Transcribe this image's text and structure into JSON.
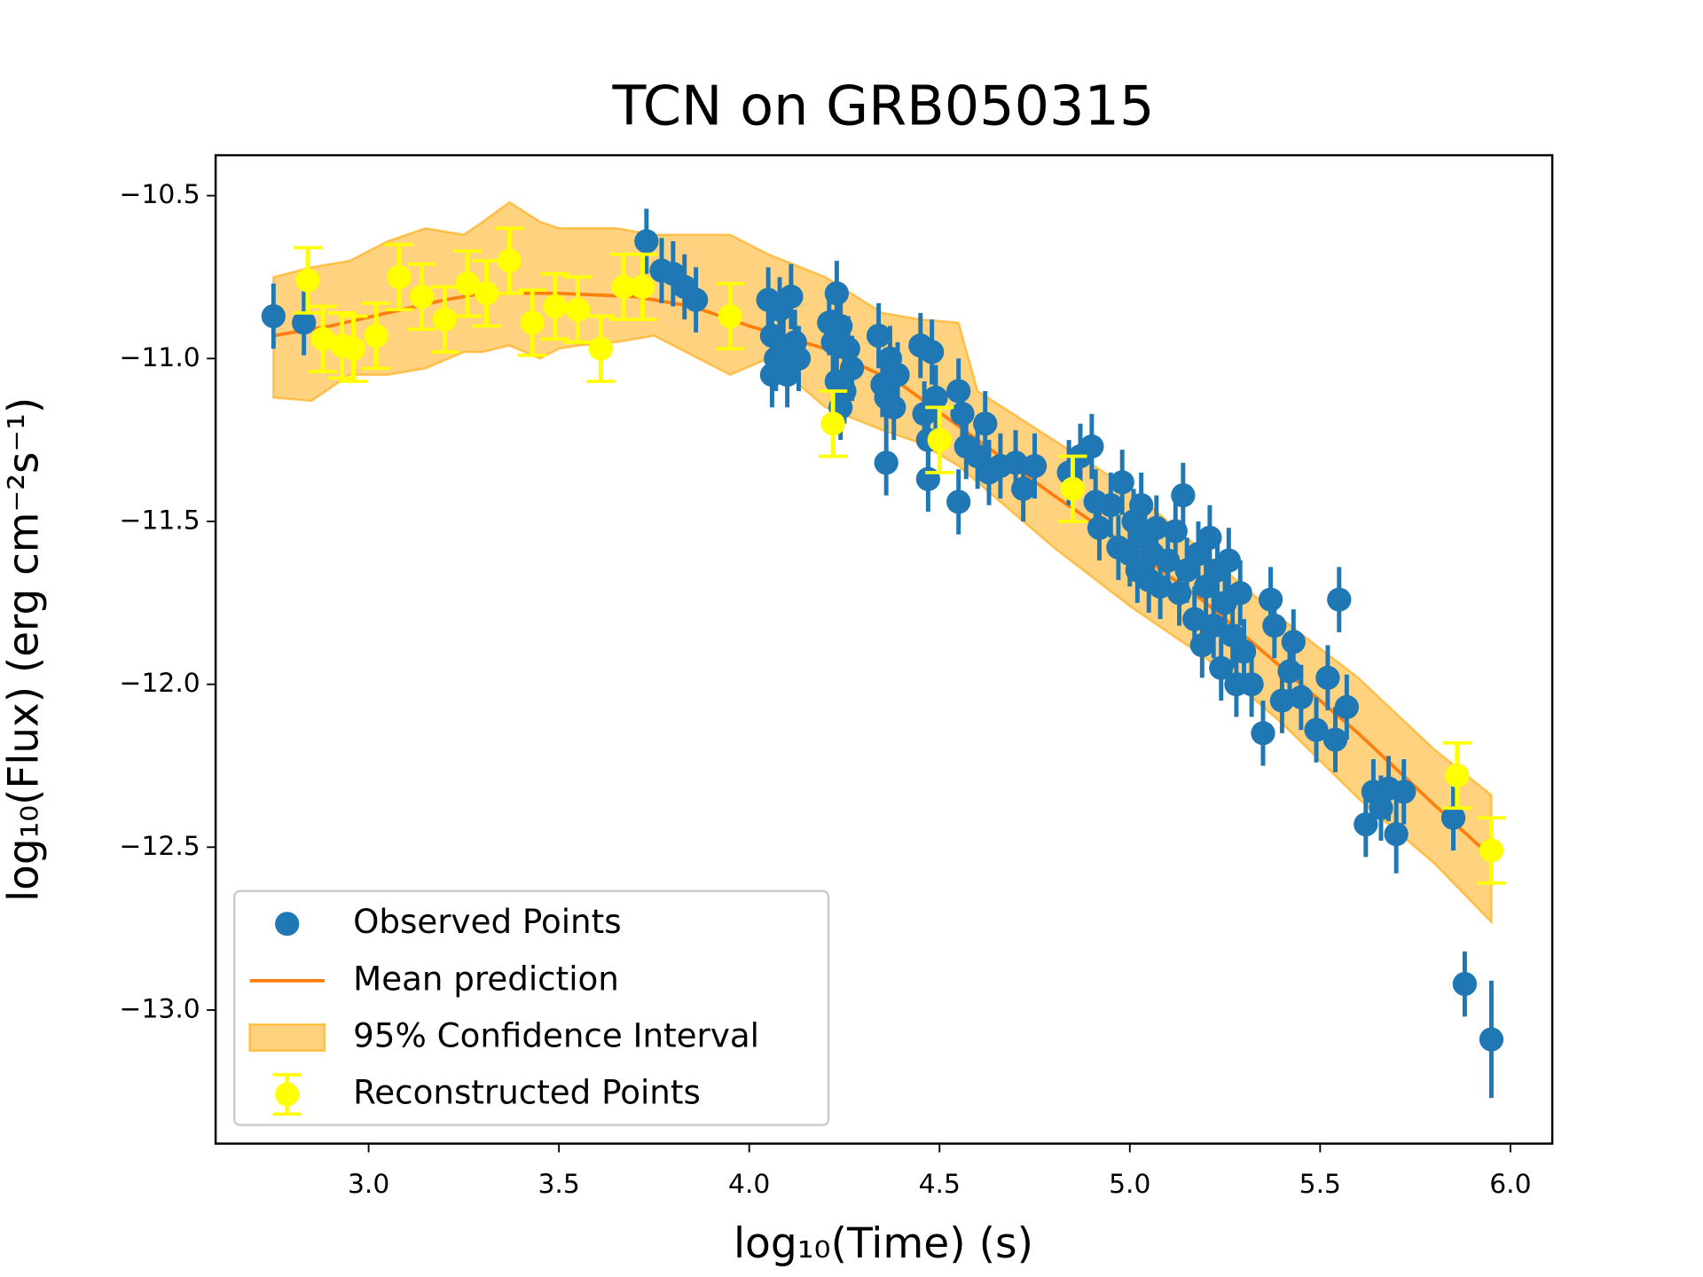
{
  "chart_data": {
    "type": "scatter",
    "title": "TCN on GRB050315",
    "x_label": "log₁₀(Time) (s)",
    "y_label": "log₁₀(Flux) (erg cm⁻²s⁻¹)",
    "xlim": [
      2.598,
      6.11
    ],
    "ylim": [
      -13.41,
      -10.376
    ],
    "xticks": [
      {
        "value": 3.0,
        "label": "3.0"
      },
      {
        "value": 3.5,
        "label": "3.5"
      },
      {
        "value": 4.0,
        "label": "4.0"
      },
      {
        "value": 4.5,
        "label": "4.5"
      },
      {
        "value": 5.0,
        "label": "5.0"
      },
      {
        "value": 5.5,
        "label": "5.5"
      },
      {
        "value": 6.0,
        "label": "6.0"
      }
    ],
    "yticks": [
      {
        "value": -10.5,
        "label": "−10.5"
      },
      {
        "value": -11.0,
        "label": "−11.0"
      },
      {
        "value": -11.5,
        "label": "−11.5"
      },
      {
        "value": -12.0,
        "label": "−12.0"
      },
      {
        "value": -12.5,
        "label": "−12.5"
      },
      {
        "value": -13.0,
        "label": "−13.0"
      }
    ],
    "legend": "lower left",
    "band": {
      "name": "95% Confidence Interval",
      "color": "#ffa500",
      "x": [
        2.75,
        2.85,
        2.95,
        3.05,
        3.15,
        3.25,
        3.3,
        3.37,
        3.45,
        3.5,
        3.55,
        3.65,
        3.75,
        3.95,
        4.05,
        4.2,
        4.35,
        4.45,
        4.55,
        4.6,
        4.8,
        5.0,
        5.2,
        5.4,
        5.6,
        5.8,
        5.95
      ],
      "upper": [
        -10.75,
        -10.72,
        -10.7,
        -10.64,
        -10.6,
        -10.62,
        -10.58,
        -10.52,
        -10.58,
        -10.6,
        -10.6,
        -10.6,
        -10.62,
        -10.62,
        -10.68,
        -10.75,
        -10.86,
        -10.88,
        -10.89,
        -11.1,
        -11.25,
        -11.4,
        -11.6,
        -11.8,
        -11.98,
        -12.2,
        -12.34
      ],
      "lower": [
        -11.12,
        -11.13,
        -11.05,
        -11.05,
        -11.03,
        -10.98,
        -10.98,
        -10.96,
        -11.0,
        -10.97,
        -10.96,
        -10.95,
        -10.93,
        -11.05,
        -11.0,
        -11.15,
        -11.22,
        -11.26,
        -11.33,
        -11.38,
        -11.58,
        -11.76,
        -11.92,
        -12.12,
        -12.35,
        -12.55,
        -12.73
      ]
    },
    "mean": {
      "name": "Mean prediction",
      "color": "#ff7f0e",
      "x": [
        2.75,
        2.9,
        3.05,
        3.2,
        3.3,
        3.5,
        3.7,
        3.85,
        4.0,
        4.2,
        4.4,
        4.6,
        4.8,
        5.0,
        5.2,
        5.4,
        5.6,
        5.8,
        5.95
      ],
      "values": [
        -10.93,
        -10.9,
        -10.86,
        -10.82,
        -10.8,
        -10.8,
        -10.81,
        -10.84,
        -10.9,
        -10.97,
        -11.08,
        -11.25,
        -11.42,
        -11.58,
        -11.75,
        -11.95,
        -12.15,
        -12.37,
        -12.53
      ]
    },
    "series": [
      {
        "name": "Observed Points",
        "color": "#1f77b4",
        "caps": false,
        "x": [
          2.75,
          2.83,
          3.73,
          3.77,
          3.8,
          3.83,
          3.86,
          4.05,
          4.06,
          4.07,
          4.08,
          4.09,
          4.1,
          4.11,
          4.12,
          4.13,
          4.06,
          4.21,
          4.22,
          4.23,
          4.23,
          4.24,
          4.25,
          4.26,
          4.27,
          4.24,
          4.34,
          4.35,
          4.36,
          4.37,
          4.38,
          4.39,
          4.36,
          4.45,
          4.46,
          4.47,
          4.48,
          4.49,
          4.47,
          4.55,
          4.56,
          4.55,
          4.57,
          4.6,
          4.62,
          4.63,
          4.66,
          4.7,
          4.72,
          4.75,
          4.84,
          4.87,
          4.9,
          4.91,
          4.92,
          4.95,
          4.97,
          4.98,
          5.0,
          5.01,
          5.02,
          5.03,
          5.04,
          5.05,
          5.06,
          5.07,
          5.08,
          5.1,
          5.12,
          5.13,
          5.14,
          5.15,
          5.17,
          5.18,
          5.19,
          5.2,
          5.21,
          5.22,
          5.23,
          5.24,
          5.25,
          5.26,
          5.27,
          5.28,
          5.29,
          5.3,
          5.32,
          5.35,
          5.37,
          5.38,
          5.4,
          5.42,
          5.43,
          5.45,
          5.49,
          5.52,
          5.54,
          5.55,
          5.57,
          5.62,
          5.64,
          5.66,
          5.68,
          5.7,
          5.72,
          5.85,
          5.88,
          5.95
        ],
        "values": [
          -10.87,
          -10.89,
          -10.64,
          -10.73,
          -10.74,
          -10.78,
          -10.82,
          -10.82,
          -10.93,
          -11.0,
          -10.85,
          -10.97,
          -11.05,
          -10.81,
          -10.95,
          -11.0,
          -11.05,
          -10.89,
          -10.95,
          -10.8,
          -11.07,
          -10.9,
          -11.1,
          -10.97,
          -11.03,
          -11.15,
          -10.93,
          -11.08,
          -11.12,
          -11.0,
          -11.15,
          -11.05,
          -11.32,
          -10.96,
          -11.17,
          -11.25,
          -10.98,
          -11.12,
          -11.37,
          -11.1,
          -11.17,
          -11.44,
          -11.27,
          -11.3,
          -11.2,
          -11.35,
          -11.33,
          -11.32,
          -11.4,
          -11.33,
          -11.35,
          -11.3,
          -11.27,
          -11.44,
          -11.52,
          -11.45,
          -11.58,
          -11.38,
          -11.6,
          -11.5,
          -11.65,
          -11.45,
          -11.55,
          -11.68,
          -11.6,
          -11.52,
          -11.7,
          -11.62,
          -11.53,
          -11.72,
          -11.42,
          -11.65,
          -11.8,
          -11.6,
          -11.88,
          -11.7,
          -11.55,
          -11.82,
          -11.65,
          -11.95,
          -11.75,
          -11.62,
          -11.85,
          -12.0,
          -11.72,
          -11.9,
          -12.0,
          -12.15,
          -11.74,
          -11.82,
          -12.05,
          -11.96,
          -11.87,
          -12.04,
          -12.14,
          -11.98,
          -12.17,
          -11.74,
          -12.07,
          -12.43,
          -12.33,
          -12.38,
          -12.32,
          -12.46,
          -12.33,
          -12.41,
          -12.92,
          -13.09
        ],
        "errors": [
          0.1,
          0.1,
          0.1,
          0.1,
          0.1,
          0.1,
          0.1,
          0.1,
          0.1,
          0.1,
          0.1,
          0.1,
          0.1,
          0.1,
          0.1,
          0.1,
          0.1,
          0.1,
          0.1,
          0.1,
          0.1,
          0.1,
          0.1,
          0.1,
          0.1,
          0.1,
          0.1,
          0.1,
          0.1,
          0.1,
          0.1,
          0.1,
          0.1,
          0.1,
          0.1,
          0.1,
          0.1,
          0.1,
          0.1,
          0.1,
          0.1,
          0.1,
          0.1,
          0.1,
          0.1,
          0.1,
          0.1,
          0.1,
          0.1,
          0.1,
          0.1,
          0.1,
          0.1,
          0.1,
          0.1,
          0.1,
          0.1,
          0.1,
          0.1,
          0.1,
          0.1,
          0.1,
          0.1,
          0.1,
          0.1,
          0.1,
          0.1,
          0.1,
          0.1,
          0.1,
          0.1,
          0.1,
          0.1,
          0.1,
          0.1,
          0.1,
          0.1,
          0.1,
          0.1,
          0.1,
          0.1,
          0.1,
          0.1,
          0.1,
          0.1,
          0.1,
          0.1,
          0.1,
          0.1,
          0.1,
          0.1,
          0.1,
          0.1,
          0.1,
          0.1,
          0.1,
          0.1,
          0.1,
          0.1,
          0.1,
          0.1,
          0.1,
          0.1,
          0.12,
          0.1,
          0.1,
          0.1,
          0.18
        ]
      },
      {
        "name": "Reconstructed Points",
        "color": "#ffff00",
        "caps": true,
        "x": [
          2.84,
          2.88,
          2.93,
          2.96,
          3.02,
          3.08,
          3.14,
          3.2,
          3.26,
          3.31,
          3.37,
          3.43,
          3.49,
          3.55,
          3.61,
          3.67,
          3.72,
          3.95,
          4.22,
          4.5,
          4.85,
          5.86,
          5.95
        ],
        "values": [
          -10.76,
          -10.94,
          -10.96,
          -10.97,
          -10.93,
          -10.75,
          -10.81,
          -10.88,
          -10.77,
          -10.8,
          -10.7,
          -10.89,
          -10.84,
          -10.85,
          -10.97,
          -10.78,
          -10.78,
          -10.87,
          -11.2,
          -11.25,
          -11.4,
          -12.28,
          -12.51
        ],
        "errors": [
          0.1,
          0.1,
          0.1,
          0.1,
          0.1,
          0.1,
          0.1,
          0.1,
          0.1,
          0.1,
          0.1,
          0.1,
          0.1,
          0.1,
          0.1,
          0.1,
          0.1,
          0.1,
          0.1,
          0.1,
          0.1,
          0.1,
          0.1
        ]
      }
    ]
  }
}
